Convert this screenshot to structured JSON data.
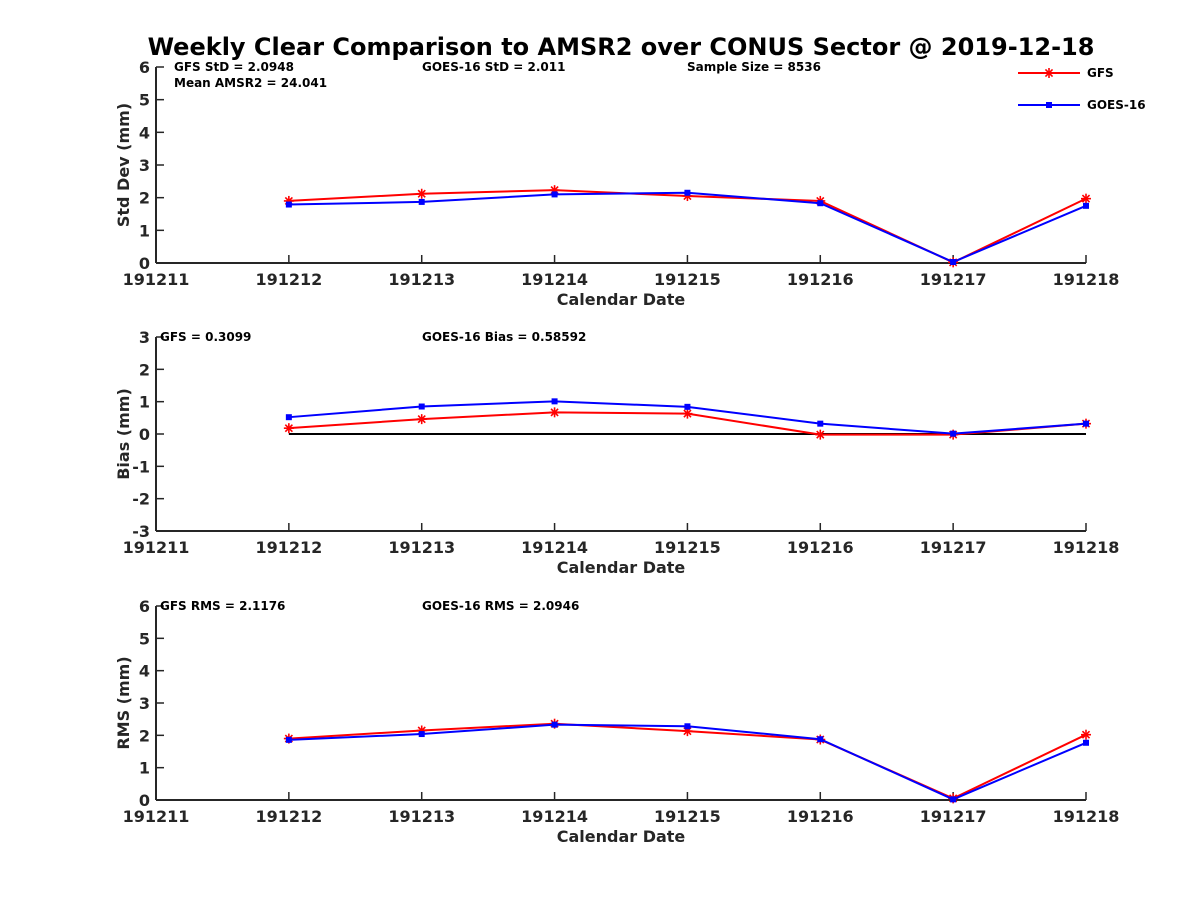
{
  "title": "Weekly Clear Comparison to AMSR2 over CONUS Sector @ 2019-12-18",
  "colors": {
    "GFS": "#ff0000",
    "GOES-16": "#0000ff",
    "axis": "#262626",
    "zero_line": "#000000"
  },
  "legend": {
    "placement": "top-right",
    "entries": [
      {
        "label": "GFS",
        "color": "#ff0000",
        "marker": "asterisk"
      },
      {
        "label": "GOES-16",
        "color": "#0000ff",
        "marker": "square"
      }
    ]
  },
  "chart_data": [
    {
      "type": "line",
      "xlabel": "Calendar Date",
      "ylabel": "Std Dev (mm)",
      "x_ticks": [
        "191211",
        "191212",
        "191213",
        "191214",
        "191215",
        "191216",
        "191217",
        "191218"
      ],
      "ylim": [
        0,
        6
      ],
      "y_ticks": [
        "0",
        "1",
        "2",
        "3",
        "4",
        "5",
        "6"
      ],
      "x": [
        "191212",
        "191213",
        "191214",
        "191215",
        "191216",
        "191217",
        "191218"
      ],
      "series": [
        {
          "name": "GFS",
          "values": [
            1.9,
            2.12,
            2.23,
            2.05,
            1.9,
            0.02,
            1.97
          ]
        },
        {
          "name": "GOES-16",
          "values": [
            1.79,
            1.87,
            2.1,
            2.15,
            1.83,
            0.03,
            1.75
          ]
        }
      ],
      "annotations": [
        "GFS StD = 2.0948",
        "Mean AMSR2 = 24.041",
        "GOES-16 StD = 2.011",
        "Sample Size = 8536"
      ]
    },
    {
      "type": "line",
      "xlabel": "Calendar Date",
      "ylabel": "Bias (mm)",
      "x_ticks": [
        "191211",
        "191212",
        "191213",
        "191214",
        "191215",
        "191216",
        "191217",
        "191218"
      ],
      "ylim": [
        -3,
        3
      ],
      "y_ticks": [
        "-3",
        "-2",
        "-1",
        "0",
        "1",
        "2",
        "3"
      ],
      "x": [
        "191212",
        "191213",
        "191214",
        "191215",
        "191216",
        "191217",
        "191218"
      ],
      "reference_line": {
        "y": 0,
        "from": "191212",
        "to": "191218"
      },
      "series": [
        {
          "name": "GFS",
          "values": [
            0.18,
            0.46,
            0.67,
            0.63,
            -0.02,
            -0.02,
            0.32
          ]
        },
        {
          "name": "GOES-16",
          "values": [
            0.52,
            0.85,
            1.01,
            0.84,
            0.32,
            0.01,
            0.32
          ]
        }
      ],
      "annotations": [
        "GFS = 0.3099",
        "GOES-16 Bias  = 0.58592"
      ]
    },
    {
      "type": "line",
      "xlabel": "Calendar Date",
      "ylabel": "RMS (mm)",
      "x_ticks": [
        "191211",
        "191212",
        "191213",
        "191214",
        "191215",
        "191216",
        "191217",
        "191218"
      ],
      "ylim": [
        0,
        6
      ],
      "y_ticks": [
        "0",
        "1",
        "2",
        "3",
        "4",
        "5",
        "6"
      ],
      "x": [
        "191212",
        "191213",
        "191214",
        "191215",
        "191216",
        "191217",
        "191218"
      ],
      "series": [
        {
          "name": "GFS",
          "values": [
            1.9,
            2.15,
            2.36,
            2.13,
            1.87,
            0.05,
            2.02
          ]
        },
        {
          "name": "GOES-16",
          "values": [
            1.86,
            2.04,
            2.33,
            2.28,
            1.88,
            0.02,
            1.77
          ]
        }
      ],
      "annotations": [
        "GFS RMS = 2.1176",
        "GOES-16 RMS = 2.0946"
      ]
    }
  ]
}
